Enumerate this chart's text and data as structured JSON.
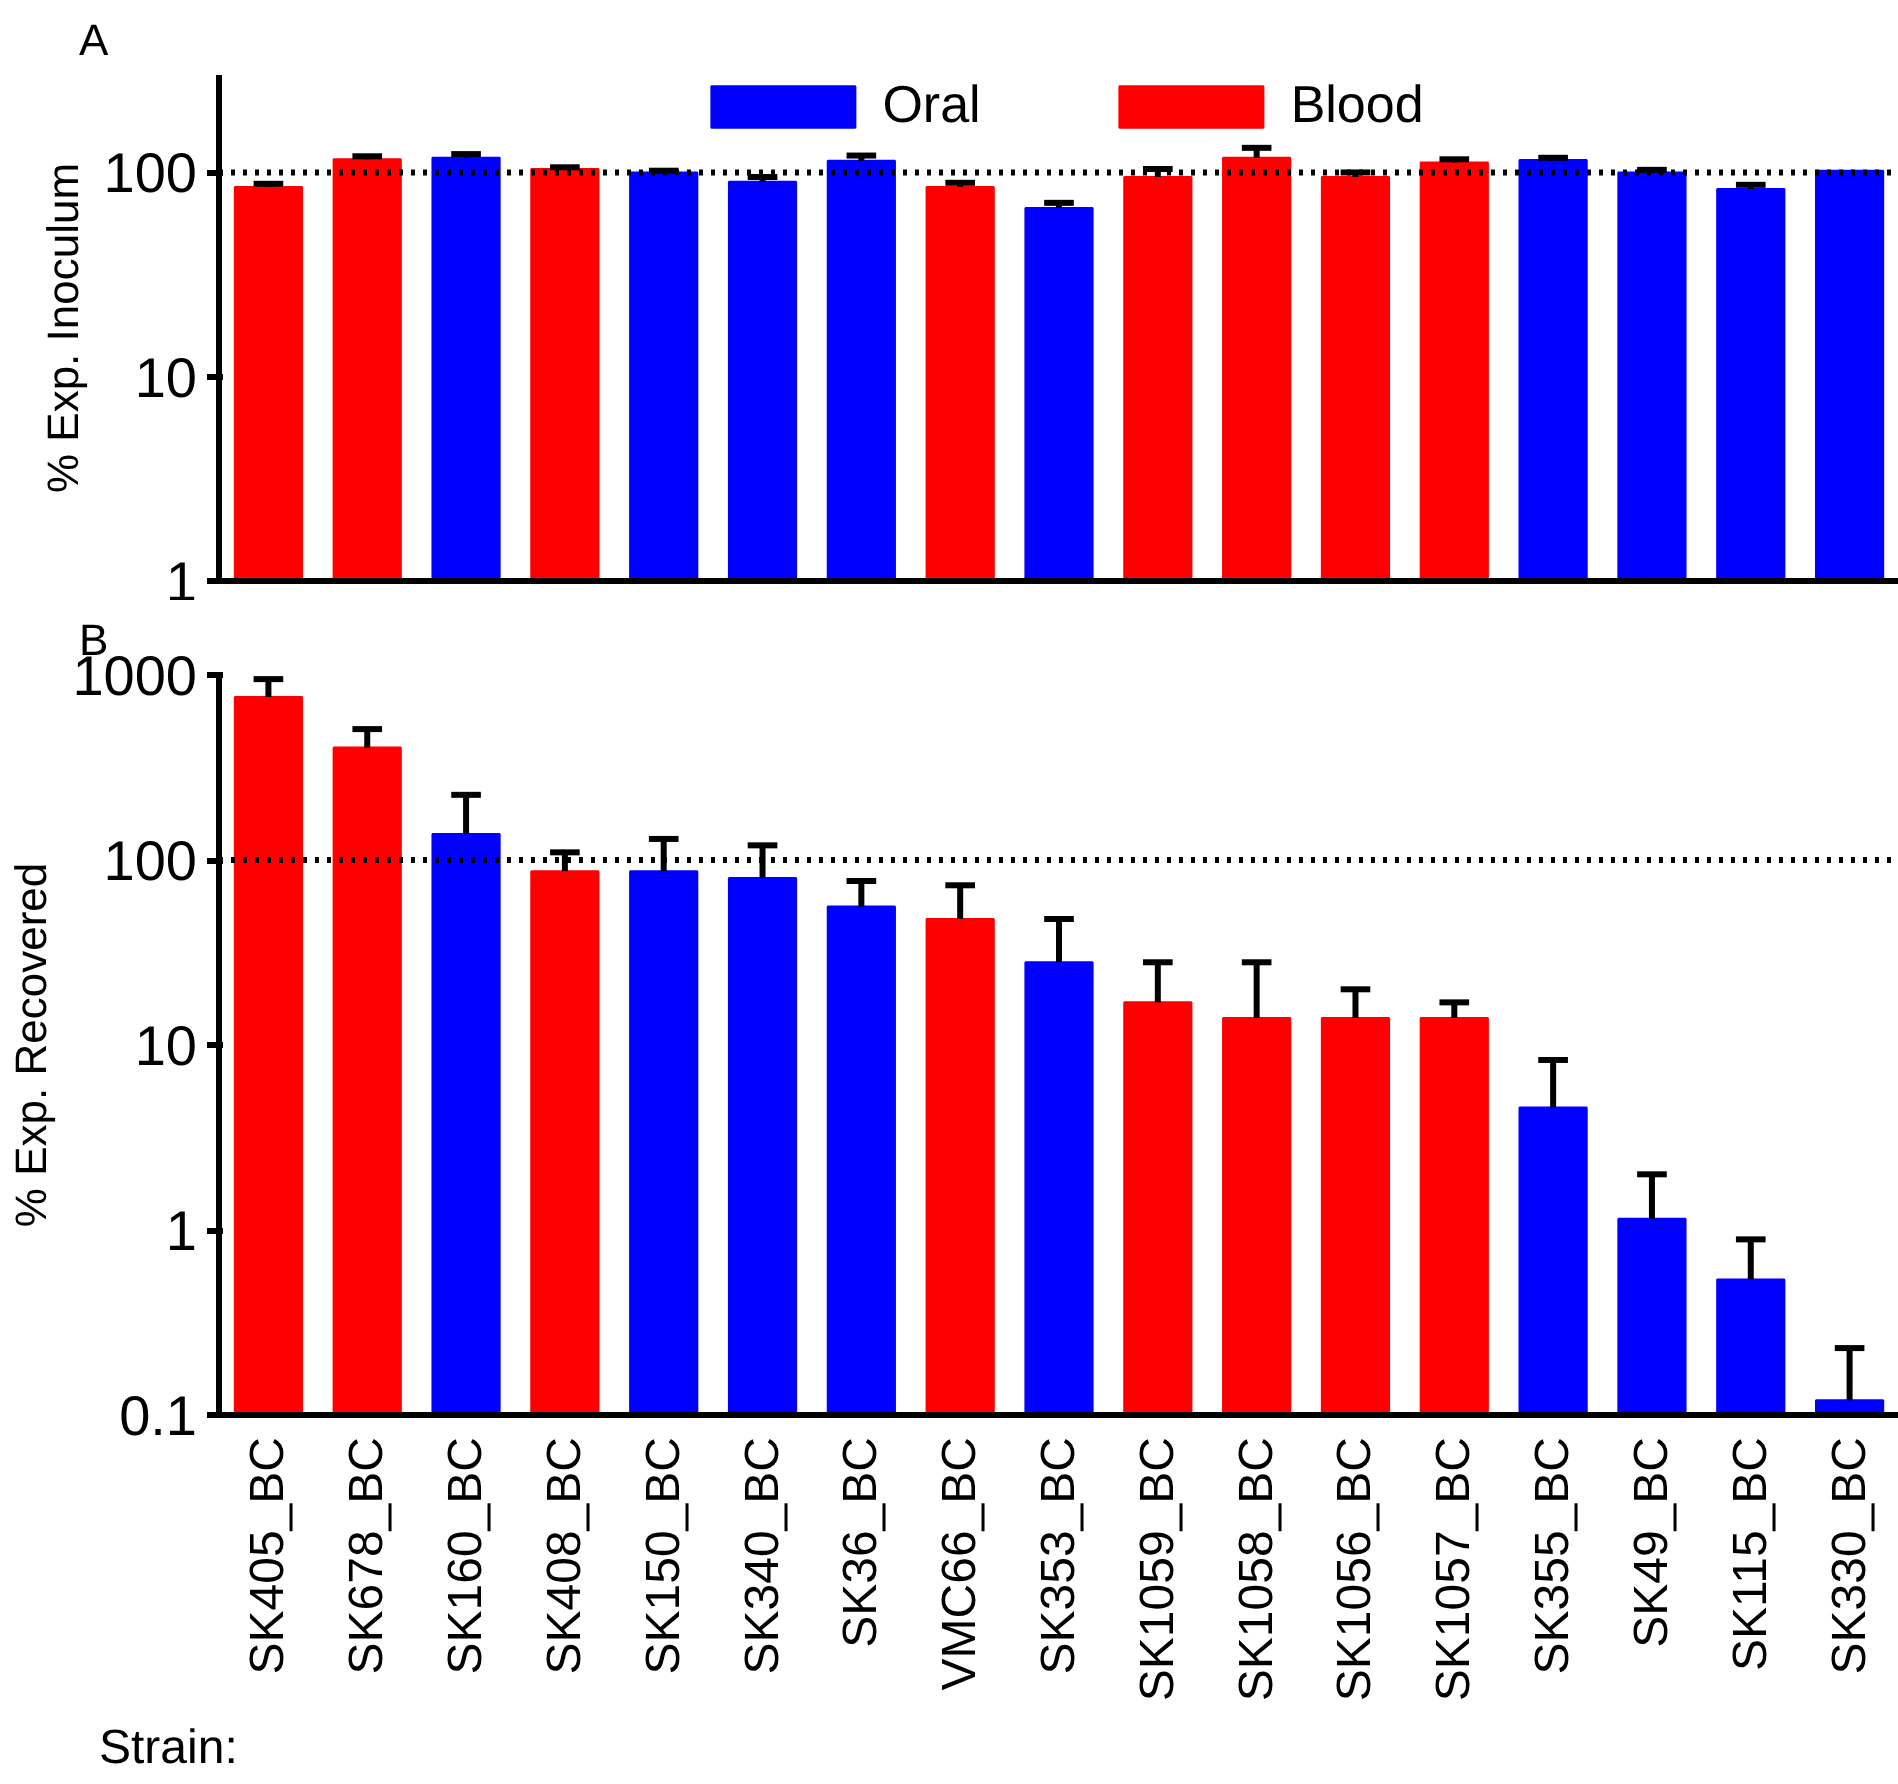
{
  "chart_data": [
    {
      "type": "bar",
      "ylabel": "% Exp. Inoculum",
      "annotations": [
        "A"
      ],
      "categories": [
        null,
        null,
        null,
        null,
        null,
        null,
        null,
        null,
        null,
        null,
        null,
        null,
        null,
        null,
        null,
        null,
        null
      ],
      "series": [
        {
          "name": "Oral",
          "color": "#0000ff",
          "values": [
            null,
            null,
            118,
            null,
            100,
            90,
            114,
            null,
            67,
            null,
            null,
            null,
            null,
            115,
            100,
            83,
            102
          ],
          "errors": [
            null,
            null,
            [
              118,
              123
            ],
            null,
            [
              100,
              102
            ],
            [
              90,
              95
            ],
            [
              114,
              121
            ],
            null,
            [
              67,
              71
            ],
            null,
            null,
            null,
            null,
            [
              115,
              118
            ],
            [
              100,
              103
            ],
            [
              83,
              87
            ],
            null
          ]
        },
        {
          "name": "Blood",
          "color": "#ff0000",
          "values": [
            85,
            116,
            null,
            104,
            null,
            null,
            null,
            85,
            null,
            95,
            118,
            95,
            112,
            null,
            null,
            null,
            null
          ],
          "errors": [
            [
              85,
              88
            ],
            [
              116,
              120
            ],
            null,
            [
              104,
              106
            ],
            null,
            null,
            null,
            [
              85,
              89
            ],
            null,
            [
              95,
              104
            ],
            [
              118,
              132
            ],
            [
              95,
              100
            ],
            [
              112,
              116
            ],
            null,
            null,
            null,
            null
          ]
        }
      ],
      "log": "y",
      "ylim": [
        1,
        300
      ],
      "yticks": [
        1,
        10,
        100
      ],
      "tick_labels": "y",
      "legend": "top",
      "grid": false,
      "ref_lines": [
        {
          "axis": "y",
          "value": 100,
          "line_style": "dotted"
        }
      ]
    },
    {
      "type": "bar",
      "ylabel": "% Exp. Recovered",
      "annotations": [
        "B",
        "Strain:"
      ],
      "categories": [
        "SK405_BC",
        "SK678_BC",
        "SK160_BC",
        "SK408_BC",
        "SK150_BC",
        "SK340_BC",
        "SK36_BC",
        "VMC66_BC",
        "SK353_BC",
        "SK1059_BC",
        "SK1058_BC",
        "SK1056_BC",
        "SK1057_BC",
        "SK355_BC",
        "SK49_BC",
        "SK115_BC",
        "SK330_BC"
      ],
      "series": [
        {
          "color": "#0000ff",
          "values": [
            null,
            null,
            138,
            null,
            87,
            80,
            56,
            null,
            28,
            null,
            null,
            null,
            null,
            4.6,
            1.15,
            0.54,
            0.12
          ],
          "errors": [
            null,
            null,
            [
              138,
              225
            ],
            null,
            [
              87,
              130
            ],
            [
              80,
              120
            ],
            [
              56,
              77
            ],
            null,
            [
              28,
              48
            ],
            null,
            null,
            null,
            null,
            [
              4.6,
              8.3
            ],
            [
              1.15,
              2.0
            ],
            [
              0.54,
              0.89
            ],
            [
              0.12,
              0.23
            ]
          ]
        },
        {
          "color": "#ff0000",
          "values": [
            760,
            405,
            null,
            87,
            null,
            null,
            null,
            48,
            null,
            17,
            14,
            14,
            14,
            null,
            null,
            null,
            null
          ],
          "errors": [
            [
              760,
              950
            ],
            [
              405,
              510
            ],
            null,
            [
              87,
              110
            ],
            null,
            null,
            null,
            [
              48,
              73
            ],
            null,
            [
              17,
              28
            ],
            [
              14,
              28
            ],
            [
              14,
              20
            ],
            [
              14,
              17
            ],
            null,
            null,
            null,
            null
          ]
        }
      ],
      "log": "y",
      "ylim": [
        0.1,
        1000
      ],
      "yticks": [
        0.1,
        1,
        10,
        100,
        1000
      ],
      "grid": false,
      "ref_lines": [
        {
          "axis": "y",
          "value": 100,
          "line_style": "dotted"
        }
      ]
    }
  ]
}
